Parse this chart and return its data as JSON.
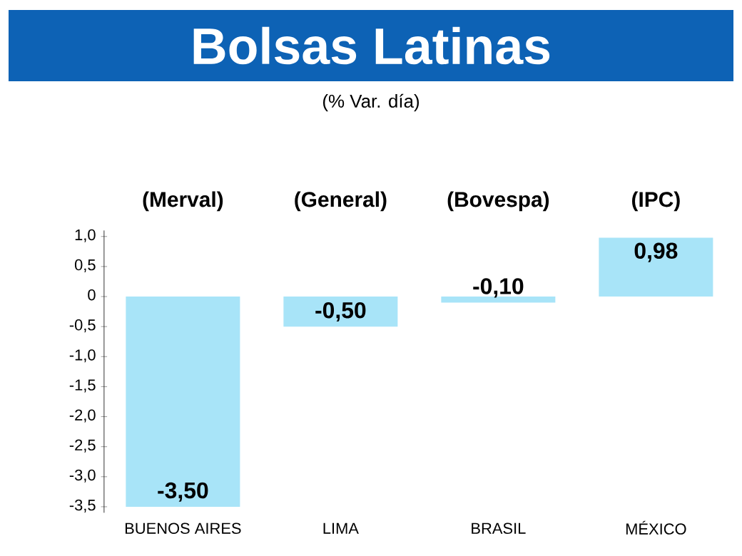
{
  "chart_data": {
    "type": "bar",
    "title": "Bolsas Latinas",
    "subtitle": "(% Var. día)",
    "categories": [
      "BUENOS AIRES",
      "LIMA",
      "BRASIL",
      "MÉXICO"
    ],
    "values": [
      -3.5,
      -0.5,
      -0.1,
      0.98
    ],
    "value_labels": [
      "-3,50",
      "-0,50",
      "-0,10",
      "0,98"
    ],
    "color": "#a8e4f8",
    "annotations": [
      "(Merval)",
      "(General)",
      "(Bovespa)",
      "(IPC)"
    ],
    "ylim": [
      -3.6,
      1.1
    ],
    "yticks": [
      {
        "value": 1.0,
        "label": "1,0"
      },
      {
        "value": 0.5,
        "label": "0,5"
      },
      {
        "value": 0,
        "label": "0"
      },
      {
        "value": -0.5,
        "label": "-0,5"
      },
      {
        "value": -1.0,
        "label": "-1,0"
      },
      {
        "value": -1.5,
        "label": "-1,5"
      },
      {
        "value": -2.0,
        "label": "-2,0"
      },
      {
        "value": -2.5,
        "label": "-2,5"
      },
      {
        "value": -3.0,
        "label": "-3,0"
      },
      {
        "value": -3.5,
        "label": "-3,5"
      }
    ],
    "grid": false
  }
}
